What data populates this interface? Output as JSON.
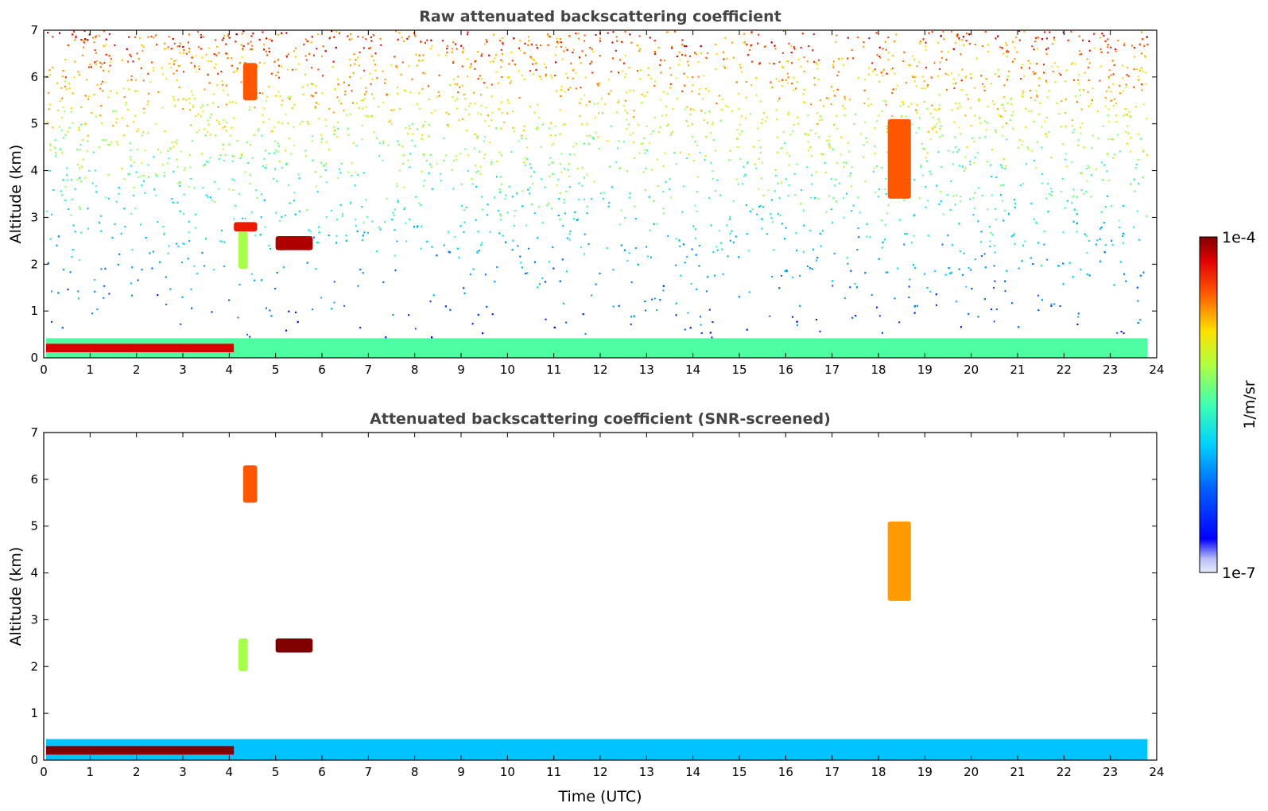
{
  "chart_data": [
    {
      "type": "heatmap",
      "title": "Raw attenuated backscattering coefficient",
      "xlabel": "",
      "ylabel": "Altitude (km)",
      "xlim": [
        0,
        24
      ],
      "ylim": [
        0,
        7
      ],
      "xticks": [
        "0",
        "1",
        "2",
        "3",
        "4",
        "5",
        "6",
        "7",
        "8",
        "9",
        "10",
        "11",
        "12",
        "13",
        "14",
        "15",
        "16",
        "17",
        "18",
        "19",
        "20",
        "21",
        "22",
        "23",
        "24"
      ],
      "yticks": [
        "0",
        "1",
        "2",
        "3",
        "4",
        "5",
        "6",
        "7"
      ],
      "features": [
        {
          "kind": "surface-layer",
          "t0": 0.05,
          "t1": 23.8,
          "z0": 0.0,
          "z1": 0.42,
          "value_log10": -5.6
        },
        {
          "kind": "boundary-layer-strong",
          "t0": 0.05,
          "t1": 4.1,
          "z0": 0.12,
          "z1": 0.3,
          "value_log10": -4.2
        },
        {
          "kind": "noise-background",
          "t0": 0.05,
          "t1": 23.8,
          "z0": 0.4,
          "z1": 7.0,
          "value_log10": -5.3
        },
        {
          "kind": "cloud",
          "t0": 5.0,
          "t1": 5.8,
          "z0": 2.3,
          "z1": 2.6,
          "value_log10": -4.1
        },
        {
          "kind": "cloud",
          "t0": 4.1,
          "t1": 4.6,
          "z0": 2.7,
          "z1": 2.9,
          "value_log10": -4.3
        },
        {
          "kind": "cloud",
          "t0": 4.2,
          "t1": 4.4,
          "z0": 1.9,
          "z1": 2.7,
          "value_log10": -5.3
        },
        {
          "kind": "cloud",
          "t0": 18.2,
          "t1": 18.7,
          "z0": 3.4,
          "z1": 5.1,
          "value_log10": -4.5
        },
        {
          "kind": "cloud",
          "t0": 4.3,
          "t1": 4.6,
          "z0": 5.5,
          "z1": 6.3,
          "value_log10": -4.5
        }
      ]
    },
    {
      "type": "heatmap",
      "title": "Attenuated backscattering coefficient (SNR-screened)",
      "xlabel": "Time (UTC)",
      "ylabel": "Altitude (km)",
      "xlim": [
        0,
        24
      ],
      "ylim": [
        0,
        7
      ],
      "xticks": [
        "0",
        "1",
        "2",
        "3",
        "4",
        "5",
        "6",
        "7",
        "8",
        "9",
        "10",
        "11",
        "12",
        "13",
        "14",
        "15",
        "16",
        "17",
        "18",
        "19",
        "20",
        "21",
        "22",
        "23",
        "24"
      ],
      "yticks": [
        "0",
        "1",
        "2",
        "3",
        "4",
        "5",
        "6",
        "7"
      ],
      "features": [
        {
          "kind": "surface-layer",
          "t0": 0.05,
          "t1": 23.8,
          "z0": 0.0,
          "z1": 0.45,
          "value_log10": -6.1
        },
        {
          "kind": "boundary-layer-strong",
          "t0": 0.05,
          "t1": 4.1,
          "z0": 0.12,
          "z1": 0.3,
          "value_log10": -3.9
        },
        {
          "kind": "cloud",
          "t0": 5.0,
          "t1": 5.8,
          "z0": 2.3,
          "z1": 2.6,
          "value_log10": -3.9
        },
        {
          "kind": "cloud",
          "t0": 4.2,
          "t1": 4.4,
          "z0": 1.9,
          "z1": 2.6,
          "value_log10": -5.3
        },
        {
          "kind": "cloud",
          "t0": 18.2,
          "t1": 18.7,
          "z0": 3.4,
          "z1": 5.1,
          "value_log10": -4.7
        },
        {
          "kind": "cloud",
          "t0": 4.3,
          "t1": 4.6,
          "z0": 5.5,
          "z1": 6.3,
          "value_log10": -4.5
        }
      ]
    }
  ],
  "colorbar": {
    "label": "1/m/sr",
    "max_label": "1e-4",
    "min_label": "1e-7",
    "colormap": "jet",
    "scale": "log"
  }
}
